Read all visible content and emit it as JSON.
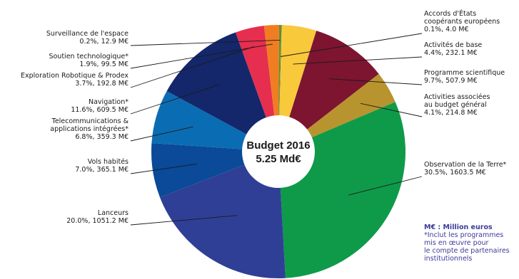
{
  "chart_data": {
    "type": "pie",
    "center_title": "Budget 2016",
    "center_value": "5.25 Md€",
    "slices": [
      {
        "name": "Accords d'États coopérants européens",
        "lines": [
          "Accords d'États",
          "coopérants européens"
        ],
        "pct": 0.1,
        "value": 4.0,
        "value_label": "0.1%, 4.0 M€",
        "color": "#2e7d32"
      },
      {
        "name": "Activités de base",
        "lines": [
          "Activités de base"
        ],
        "pct": 4.4,
        "value": 232.1,
        "value_label": "4.4%, 232.1 M€",
        "color": "#f9c93c"
      },
      {
        "name": "Programme scientifique",
        "lines": [
          "Programme scientifique"
        ],
        "pct": 9.7,
        "value": 507.9,
        "value_label": "9.7%, 507.9 M€",
        "color": "#7d1530"
      },
      {
        "name": "Activities associées au budget général",
        "lines": [
          "Activities associées",
          "au budget général"
        ],
        "pct": 4.1,
        "value": 214.8,
        "value_label": "4.1%, 214.8 M€",
        "color": "#b8942e"
      },
      {
        "name": "Observation de la Terre*",
        "lines": [
          "Observation de la Terre*"
        ],
        "pct": 30.5,
        "value": 1603.5,
        "value_label": "30.5%, 1603.5 M€",
        "color": "#0f9a4a"
      },
      {
        "name": "Lanceurs",
        "lines": [
          "Lanceurs"
        ],
        "pct": 20.0,
        "value": 1051.2,
        "value_label": "20.0%, 1051.2 M€",
        "color": "#2f3f96"
      },
      {
        "name": "Vols habités",
        "lines": [
          "Vols habités"
        ],
        "pct": 7.0,
        "value": 365.1,
        "value_label": "7.0%, 365.1 M€",
        "color": "#0a4a98"
      },
      {
        "name": "Telecommunications & applications intégrées*",
        "lines": [
          "Telecommunications &",
          "applications intégrées*"
        ],
        "pct": 6.8,
        "value": 359.3,
        "value_label": "6.8%, 359.3 M€",
        "color": "#0a6db3"
      },
      {
        "name": "Navigation*",
        "lines": [
          "Navigation*"
        ],
        "pct": 11.6,
        "value": 609.5,
        "value_label": "11.6%, 609.5 M€",
        "color": "#14276b"
      },
      {
        "name": "Exploration Robotique & Prodex",
        "lines": [
          "Exploration Robotique & Prodex"
        ],
        "pct": 3.7,
        "value": 192.8,
        "value_label": "3.7%, 192.8 M€",
        "color": "#e62e4f"
      },
      {
        "name": "Soutien technologique*",
        "lines": [
          "Soutien technologique*"
        ],
        "pct": 1.9,
        "value": 99.5,
        "value_label": "1.9%, 99.5 M€",
        "color": "#f07d22"
      },
      {
        "name": "Surveillance de l'espace",
        "lines": [
          "Surveillance de l'espace"
        ],
        "pct": 0.2,
        "value": 12.9,
        "value_label": "0.2%, 12.9 M€",
        "color": "#6a8f2a"
      }
    ],
    "notes": [
      "M€  : Million euros",
      "*Inclut les programmes",
      "mis en œuvre pour",
      "le compte de partenaires",
      "institutionnels"
    ]
  }
}
